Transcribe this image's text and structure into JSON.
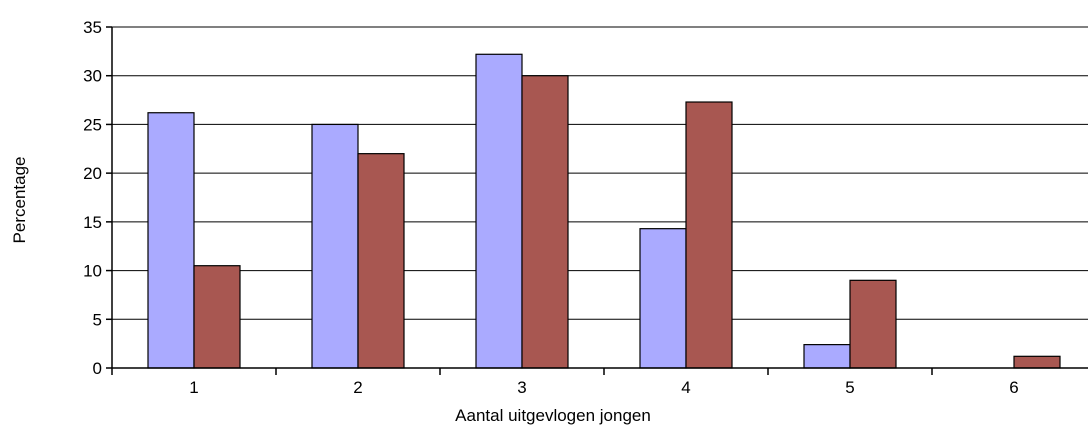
{
  "chart_data": {
    "type": "bar",
    "categories": [
      "1",
      "2",
      "3",
      "4",
      "5",
      "6"
    ],
    "series": [
      {
        "color": "#aaaaff",
        "values": [
          26.2,
          25.0,
          32.2,
          14.3,
          2.4,
          0
        ]
      },
      {
        "color": "#a85751",
        "values": [
          10.5,
          22.0,
          30.0,
          27.3,
          9.0,
          1.2
        ]
      }
    ],
    "xlabel": "Aantal uitgevlogen jongen",
    "ylabel": "Percentage",
    "ylim": [
      0,
      35
    ],
    "yticks": [
      "0",
      "5",
      "10",
      "15",
      "20",
      "25",
      "30",
      "35"
    ],
    "grid": true,
    "legend": "none"
  }
}
